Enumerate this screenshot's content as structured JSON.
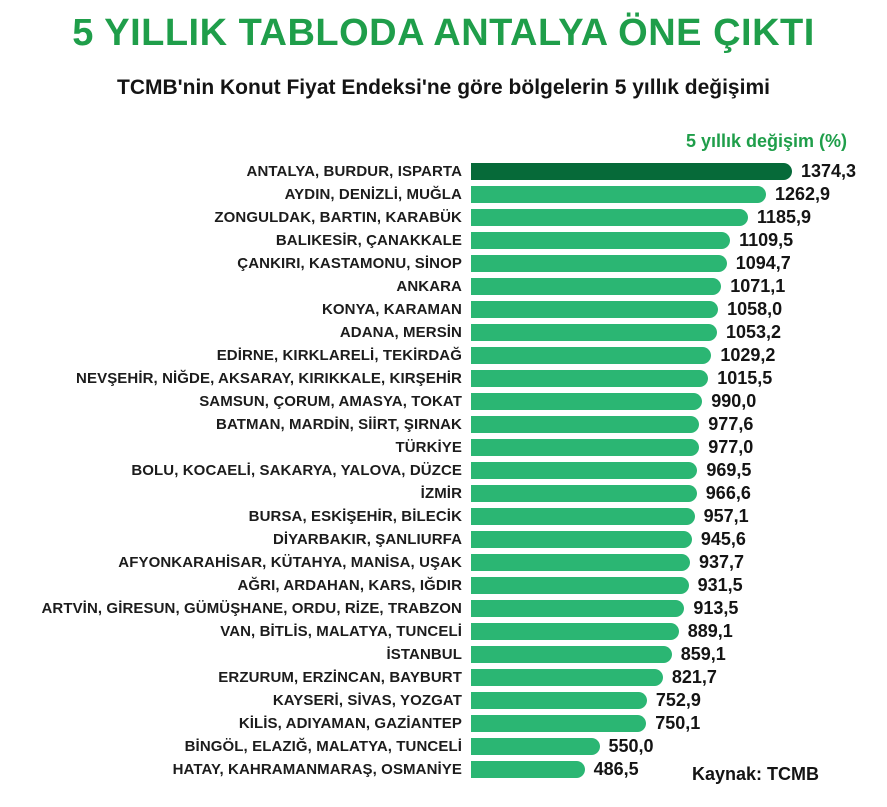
{
  "header": {
    "title": "5 YILLIK TABLODA ANTALYA ÖNE ÇIKTI",
    "subtitle": "TCMB'nin Konut Fiyat Endeksi'ne göre bölgelerin 5 yıllık değişimi",
    "axis_label": "5 yıllık değişim (%)"
  },
  "source": "Kaynak: TCMB",
  "colors": {
    "title_green": "#1f9e4a",
    "bar_green": "#2bb673",
    "bar_highlight_dark_green": "#066a39",
    "text_black": "#141414",
    "background": "#ffffff"
  },
  "chart_data": {
    "type": "bar",
    "orientation": "horizontal",
    "title": "5 YILLIK TABLODA ANTALYA ÖNE ÇIKTI",
    "subtitle": "TCMB'nin Konut Fiyat Endeksi'ne göre bölgelerin 5 yıllık değişimi",
    "value_axis_label": "5 yıllık değişim (%)",
    "source": "Kaynak: TCMB",
    "xlim": [
      0,
      1374.3
    ],
    "grid": false,
    "legend": false,
    "highlight_index": 0,
    "categories": [
      "ANTALYA, BURDUR, ISPARTA",
      "AYDIN, DENİZLİ, MUĞLA",
      "ZONGULDAK, BARTIN, KARABÜK",
      "BALIKESİR, ÇANAKKALE",
      "ÇANKIRI, KASTAMONU, SİNOP",
      "ANKARA",
      "KONYA, KARAMAN",
      "ADANA, MERSİN",
      "EDİRNE, KIRKLARELİ, TEKİRDAĞ",
      "NEVŞEHİR, NİĞDE, AKSARAY, KIRIKKALE, KIRŞEHİR",
      "SAMSUN, ÇORUM, AMASYA, TOKAT",
      "BATMAN, MARDİN, SİİRT, ŞIRNAK",
      "TÜRKİYE",
      "BOLU, KOCAELİ, SAKARYA, YALOVA, DÜZCE",
      "İZMİR",
      "BURSA, ESKİŞEHİR, BİLECİK",
      "DİYARBAKIR, ŞANLIURFA",
      "AFYONKARAHİSAR, KÜTAHYA, MANİSA, UŞAK",
      "AĞRI, ARDAHAN, KARS, IĞDIR",
      "ARTVİN, GİRESUN, GÜMÜŞHANE, ORDU, RİZE, TRABZON",
      "VAN, BİTLİS, MALATYA, TUNCELİ",
      "İSTANBUL",
      "ERZURUM, ERZİNCAN, BAYBURT",
      "KAYSERİ, SİVAS, YOZGAT",
      "KİLİS, ADIYAMAN, GAZİANTEP",
      "BİNGÖL, ELAZIĞ, MALATYA, TUNCELİ",
      "HATAY, KAHRAMANMARAŞ, OSMANİYE"
    ],
    "values": [
      1374.3,
      1262.9,
      1185.9,
      1109.5,
      1094.7,
      1071.1,
      1058.0,
      1053.2,
      1029.2,
      1015.5,
      990.0,
      977.6,
      977.0,
      969.5,
      966.6,
      957.1,
      945.6,
      937.7,
      931.5,
      913.5,
      889.1,
      859.1,
      821.7,
      752.9,
      750.1,
      550.0,
      486.5
    ],
    "value_display": [
      "1374,3",
      "1262,9",
      "1185,9",
      "1109,5",
      "1094,7",
      "1071,1",
      "1058,0",
      "1053,2",
      "1029,2",
      "1015,5",
      "990,0",
      "977,6",
      "977,0",
      "969,5",
      "966,6",
      "957,1",
      "945,6",
      "937,7",
      "931,5",
      "913,5",
      "889,1",
      "859,1",
      "821,7",
      "752,9",
      "750,1",
      "550,0",
      "486,5"
    ]
  }
}
